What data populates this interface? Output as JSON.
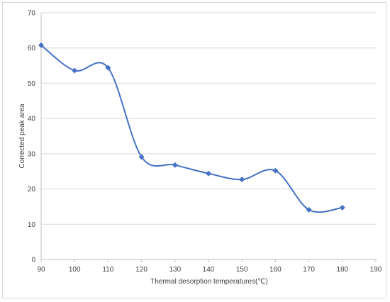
{
  "chart_data": {
    "type": "line",
    "title": "",
    "xlabel": "Thermal desorption temperatures(℃)",
    "ylabel": "Corrected peak area",
    "xlim": [
      90,
      190
    ],
    "ylim": [
      0,
      70
    ],
    "xticks": [
      90,
      100,
      110,
      120,
      130,
      140,
      150,
      160,
      170,
      180,
      190
    ],
    "yticks": [
      0,
      10,
      20,
      30,
      40,
      50,
      60,
      70
    ],
    "grid": "horizontal",
    "legend": "none",
    "series": [
      {
        "color": "#4472c4",
        "marker": "diamond",
        "smooth": true,
        "x": [
          90,
          100,
          110,
          120,
          130,
          140,
          150,
          160,
          170,
          180
        ],
        "y": [
          60.8,
          53.6,
          54.4,
          29.1,
          26.8,
          24.4,
          22.7,
          25.2,
          14.1,
          14.7
        ]
      }
    ]
  }
}
